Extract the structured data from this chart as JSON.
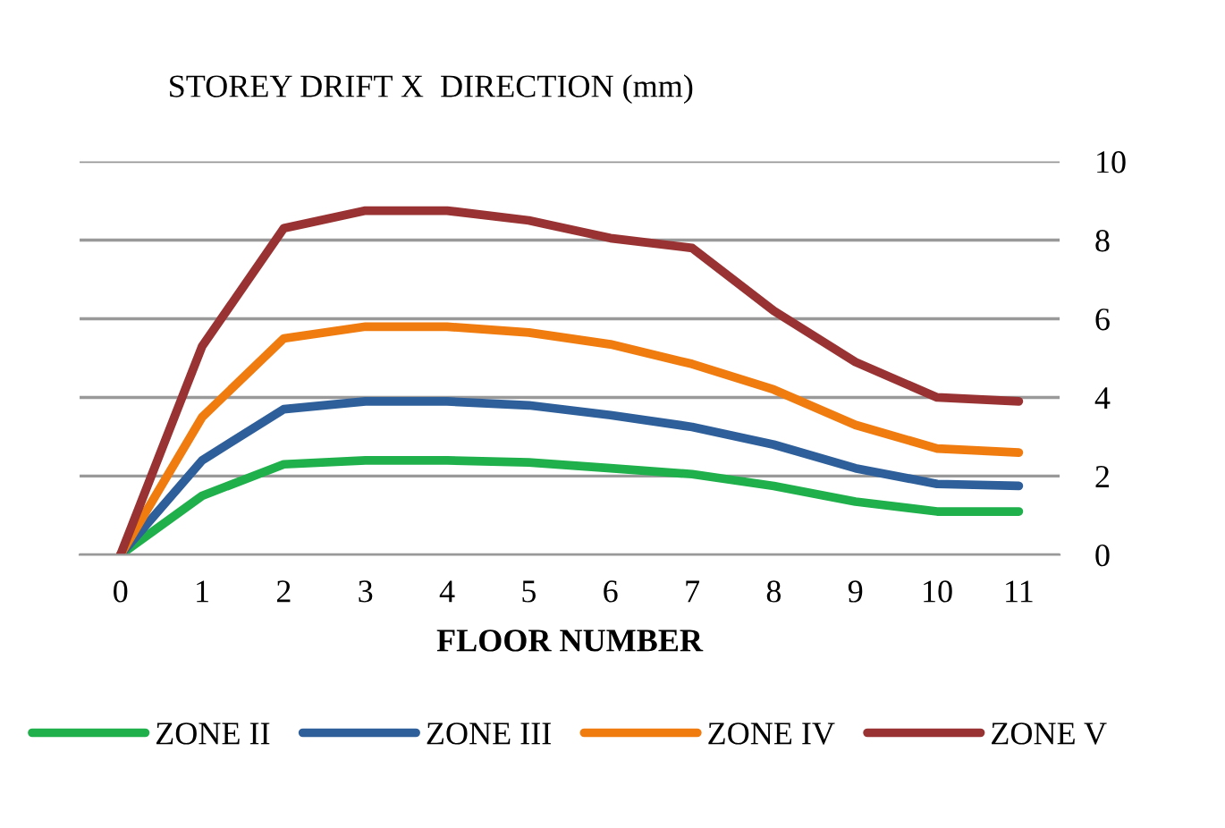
{
  "chart_data": {
    "type": "line",
    "title": "STOREY DRIFT X  DIRECTION (mm)",
    "xlabel": "FLOOR NUMBER",
    "categories": [
      "0",
      "1",
      "2",
      "3",
      "4",
      "5",
      "6",
      "7",
      "8",
      "9",
      "10",
      "11"
    ],
    "series": [
      {
        "name": "ZONE II",
        "color": "#1fb04c",
        "values": [
          0,
          1.5,
          2.3,
          2.4,
          2.4,
          2.35,
          2.2,
          2.05,
          1.75,
          1.35,
          1.1,
          1.1
        ]
      },
      {
        "name": "ZONE III",
        "color": "#2e5f9a",
        "values": [
          0,
          2.4,
          3.7,
          3.9,
          3.9,
          3.8,
          3.55,
          3.25,
          2.8,
          2.2,
          1.8,
          1.75
        ]
      },
      {
        "name": "ZONE IV",
        "color": "#f07c10",
        "values": [
          0,
          3.5,
          5.5,
          5.8,
          5.8,
          5.65,
          5.35,
          4.85,
          4.2,
          3.3,
          2.7,
          2.6
        ]
      },
      {
        "name": "ZONE V",
        "color": "#993333",
        "values": [
          0,
          5.3,
          8.3,
          8.75,
          8.75,
          8.5,
          8.05,
          7.8,
          6.2,
          4.9,
          4.0,
          3.9
        ]
      }
    ],
    "ylim": [
      0,
      10
    ],
    "yticks": [
      0,
      2,
      4,
      6,
      8,
      10
    ],
    "grid": "y",
    "legend": "bottom",
    "marker": "none",
    "line_style": "solid"
  }
}
